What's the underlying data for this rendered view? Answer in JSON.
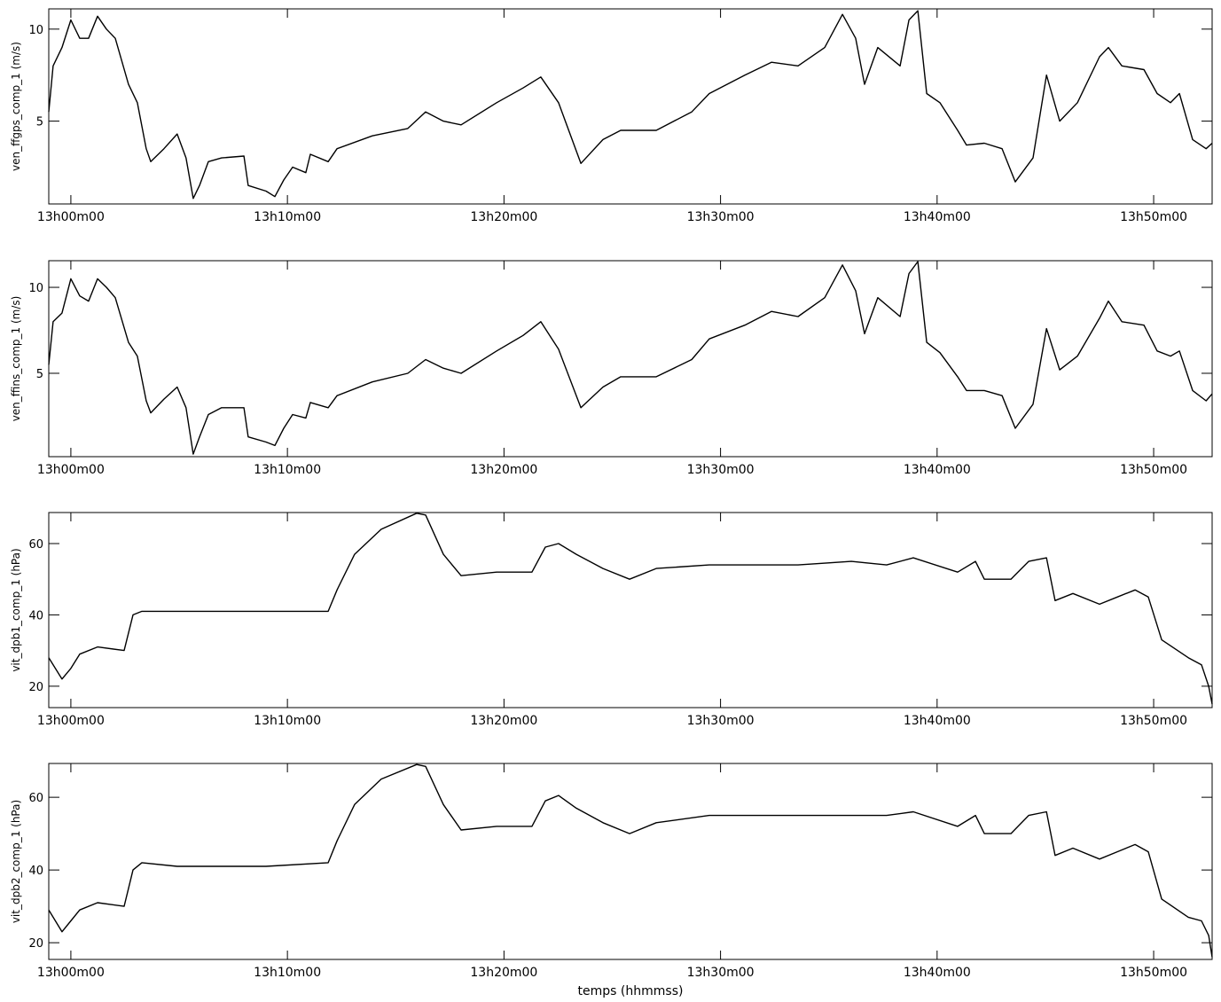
{
  "chart_data": [
    {
      "type": "line",
      "ylabel": "ven_ffgps_comp_1 (m/s)",
      "x": [
        -1.02,
        -0.82,
        -0.41,
        0,
        0.41,
        0.82,
        1.23,
        1.64,
        2.05,
        2.66,
        3.07,
        3.48,
        3.69,
        4.3,
        4.91,
        5.32,
        5.65,
        5.94,
        6.35,
        6.96,
        7.99,
        8.19,
        9.01,
        9.42,
        9.83,
        10.24,
        10.85,
        11.06,
        11.88,
        12.29,
        13.92,
        15.56,
        16.38,
        17.2,
        18.02,
        19.66,
        20.88,
        21.7,
        22.52,
        23.55,
        24.57,
        25.39,
        27.03,
        28.67,
        29.48,
        31.12,
        32.35,
        33.58,
        34.81,
        35.63,
        36.24,
        36.65,
        37.26,
        38.29,
        38.7,
        39.11,
        39.52,
        40.13,
        40.95,
        41.36,
        42.18,
        43.0,
        43.61,
        44.43,
        45.05,
        45.66,
        46.48,
        47.5,
        47.91,
        48.53,
        49.55,
        50.16,
        50.78,
        51.19,
        51.8,
        52.42,
        52.7
      ],
      "values": [
        5.5,
        8,
        9,
        10.5,
        9.5,
        9.5,
        10.7,
        10,
        9.5,
        7,
        6,
        3.5,
        2.8,
        3.5,
        4.3,
        3,
        0.8,
        1.5,
        2.8,
        3,
        3.1,
        1.5,
        1.2,
        0.9,
        1.8,
        2.5,
        2.2,
        3.2,
        2.8,
        3.5,
        4.2,
        4.6,
        5.5,
        5,
        4.8,
        6,
        6.8,
        7.4,
        6,
        2.7,
        4,
        4.5,
        4.5,
        5.5,
        6.5,
        7.5,
        8.2,
        8,
        9,
        10.8,
        9.5,
        7,
        9,
        8,
        10.5,
        11,
        6.5,
        6,
        4.5,
        3.7,
        3.8,
        3.5,
        1.7,
        3,
        7.5,
        5,
        6,
        8.5,
        9,
        8,
        7.8,
        6.5,
        6,
        6.5,
        4,
        3.5,
        3.8
      ],
      "color": "#000000",
      "xlim": [
        -1.02,
        52.7
      ],
      "ylim": [
        0.5,
        11.1
      ],
      "yticks": [
        5,
        10
      ],
      "xticks": [
        {
          "value": 0,
          "label": "13h00m00"
        },
        {
          "value": 10,
          "label": "13h10m00"
        },
        {
          "value": 20,
          "label": "13h20m00"
        },
        {
          "value": 30,
          "label": "13h30m00"
        },
        {
          "value": 40,
          "label": "13h40m00"
        },
        {
          "value": 50,
          "label": "13h50m00"
        }
      ]
    },
    {
      "type": "line",
      "ylabel": "ven_ffins_comp_1 (m/s)",
      "x": [
        -1.02,
        -0.82,
        -0.41,
        0,
        0.41,
        0.82,
        1.23,
        1.64,
        2.05,
        2.66,
        3.07,
        3.48,
        3.69,
        4.3,
        4.91,
        5.32,
        5.65,
        5.94,
        6.35,
        6.96,
        7.99,
        8.19,
        9.01,
        9.42,
        9.83,
        10.24,
        10.85,
        11.06,
        11.88,
        12.29,
        13.92,
        15.56,
        16.38,
        17.2,
        18.02,
        19.66,
        20.88,
        21.7,
        22.52,
        23.55,
        24.57,
        25.39,
        27.03,
        28.67,
        29.48,
        31.12,
        32.35,
        33.58,
        34.81,
        35.63,
        36.24,
        36.65,
        37.26,
        38.29,
        38.7,
        39.11,
        39.52,
        40.13,
        40.95,
        41.36,
        42.18,
        43.0,
        43.61,
        44.43,
        45.05,
        45.66,
        46.48,
        47.5,
        47.91,
        48.53,
        49.55,
        50.16,
        50.78,
        51.19,
        51.8,
        52.42,
        52.7
      ],
      "values": [
        5.5,
        8,
        8.5,
        10.5,
        9.5,
        9.2,
        10.5,
        10,
        9.4,
        6.8,
        6,
        3.4,
        2.7,
        3.5,
        4.2,
        3,
        0.3,
        1.3,
        2.6,
        3,
        3,
        1.3,
        1,
        0.8,
        1.8,
        2.6,
        2.4,
        3.3,
        3,
        3.7,
        4.5,
        5,
        5.8,
        5.3,
        5,
        6.3,
        7.2,
        8,
        6.4,
        3,
        4.2,
        4.8,
        4.8,
        5.8,
        7,
        7.8,
        8.6,
        8.3,
        9.4,
        11.3,
        9.8,
        7.3,
        9.4,
        8.3,
        10.8,
        11.5,
        6.8,
        6.2,
        4.8,
        4,
        4,
        3.7,
        1.8,
        3.2,
        7.6,
        5.2,
        6,
        8.2,
        9.2,
        8,
        7.8,
        6.3,
        6,
        6.3,
        4,
        3.4,
        3.8
      ],
      "color": "#000000",
      "xlim": [
        -1.02,
        52.7
      ],
      "ylim": [
        0.15,
        11.55
      ],
      "yticks": [
        5,
        10
      ],
      "xticks": [
        {
          "value": 0,
          "label": "13h00m00"
        },
        {
          "value": 10,
          "label": "13h10m00"
        },
        {
          "value": 20,
          "label": "13h20m00"
        },
        {
          "value": 30,
          "label": "13h30m00"
        },
        {
          "value": 40,
          "label": "13h40m00"
        },
        {
          "value": 50,
          "label": "13h50m00"
        }
      ]
    },
    {
      "type": "line",
      "ylabel": "vit_dpb1_comp_1 (hPa)",
      "x": [
        -1.02,
        -0.41,
        0,
        0.41,
        1.23,
        2.46,
        2.87,
        3.28,
        4.91,
        9.01,
        11.88,
        12.29,
        13.1,
        14.33,
        15.97,
        16.38,
        17.2,
        18.02,
        19.66,
        21.29,
        21.91,
        22.52,
        23.34,
        24.57,
        25.8,
        27.03,
        29.48,
        33.58,
        36.04,
        37.67,
        38.9,
        40.95,
        41.77,
        42.18,
        43.41,
        44.23,
        45.05,
        45.45,
        46.27,
        47.5,
        48.32,
        49.14,
        49.75,
        50.37,
        51.6,
        52.21,
        52.54,
        52.7
      ],
      "values": [
        28,
        22,
        25,
        29,
        31,
        30,
        40,
        41,
        41,
        41,
        41,
        47,
        57,
        64,
        68.5,
        68,
        57,
        51,
        52,
        52,
        59,
        60,
        57,
        53,
        50,
        53,
        54,
        54,
        55,
        54,
        56,
        52,
        55,
        50,
        50,
        55,
        56,
        44,
        46,
        43,
        45,
        47,
        45,
        33,
        28,
        26,
        20,
        15
      ],
      "color": "#000000",
      "xlim": [
        -1.02,
        52.7
      ],
      "ylim": [
        14,
        68.7
      ],
      "yticks": [
        20,
        40,
        60
      ],
      "xticks": [
        {
          "value": 0,
          "label": "13h00m00"
        },
        {
          "value": 10,
          "label": "13h10m00"
        },
        {
          "value": 20,
          "label": "13h20m00"
        },
        {
          "value": 30,
          "label": "13h30m00"
        },
        {
          "value": 40,
          "label": "13h40m00"
        },
        {
          "value": 50,
          "label": "13h50m00"
        }
      ]
    },
    {
      "type": "line",
      "ylabel": "vit_dpb2_comp_1 (hPa)",
      "xlabel": "temps (hhmmss)",
      "x": [
        -1.02,
        -0.41,
        0,
        0.41,
        1.23,
        2.46,
        2.87,
        3.28,
        4.91,
        9.01,
        11.88,
        12.29,
        13.1,
        14.33,
        15.97,
        16.38,
        17.2,
        18.02,
        19.66,
        21.29,
        21.91,
        22.52,
        23.34,
        24.57,
        25.8,
        27.03,
        29.48,
        33.58,
        36.04,
        37.67,
        38.9,
        40.95,
        41.77,
        42.18,
        43.41,
        44.23,
        45.05,
        45.45,
        46.27,
        47.5,
        48.32,
        49.14,
        49.75,
        50.37,
        51.6,
        52.21,
        52.54,
        52.7
      ],
      "values": [
        29,
        23,
        26,
        29,
        31,
        30,
        40,
        42,
        41,
        41,
        42,
        48,
        58,
        65,
        69,
        68.5,
        58,
        51,
        52,
        52,
        59,
        60.5,
        57,
        53,
        50,
        53,
        55,
        55,
        55,
        55,
        56,
        52,
        55,
        50,
        50,
        55,
        56,
        44,
        46,
        43,
        45,
        47,
        45,
        32,
        27,
        26,
        22,
        16
      ],
      "color": "#000000",
      "xlim": [
        -1.02,
        52.7
      ],
      "ylim": [
        15.4,
        69.3
      ],
      "yticks": [
        20,
        40,
        60
      ],
      "xticks": [
        {
          "value": 0,
          "label": "13h00m00"
        },
        {
          "value": 10,
          "label": "13h10m00"
        },
        {
          "value": 20,
          "label": "13h20m00"
        },
        {
          "value": 30,
          "label": "13h30m00"
        },
        {
          "value": 40,
          "label": "13h40m00"
        },
        {
          "value": 50,
          "label": "13h50m00"
        }
      ]
    }
  ]
}
